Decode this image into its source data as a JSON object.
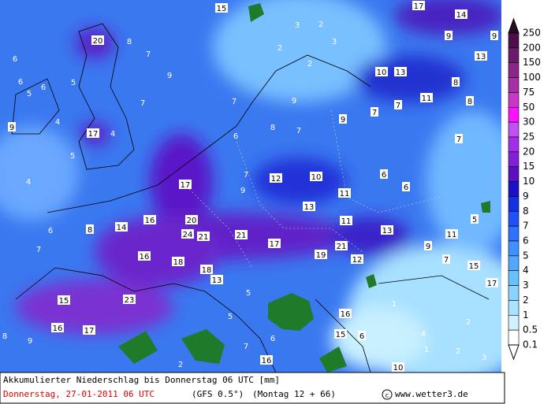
{
  "map": {
    "boxed_labels": [
      15,
      20,
      17,
      10,
      13,
      11,
      17,
      12,
      10,
      13,
      11,
      11,
      13,
      11,
      9,
      16,
      20,
      24,
      21,
      21,
      17,
      21,
      19,
      12,
      16,
      18,
      18,
      13,
      15,
      23,
      16,
      17,
      15,
      17,
      16,
      15,
      16,
      10,
      9,
      8,
      14,
      17,
      14,
      9,
      9,
      13,
      8,
      8,
      9,
      7,
      7,
      6,
      6,
      7,
      5,
      7,
      6
    ],
    "plain_labels": [
      2,
      3,
      3,
      2,
      2,
      9,
      7,
      6,
      6,
      6,
      5,
      5,
      4,
      4,
      5,
      4,
      7,
      8,
      7,
      9,
      6,
      8,
      7,
      7,
      9,
      6,
      7,
      5,
      7,
      5,
      6,
      1,
      4,
      2,
      2,
      2,
      8,
      9,
      3,
      1
    ]
  },
  "legend": {
    "levels": [
      250,
      200,
      150,
      100,
      75,
      50,
      30,
      25,
      20,
      15,
      10,
      9,
      8,
      7,
      6,
      5,
      4,
      3,
      2,
      1,
      0.5,
      0.1
    ],
    "colors": [
      "#2a0a2a",
      "#4b0f4b",
      "#6a1a6a",
      "#8b248b",
      "#a82ea8",
      "#c838c8",
      "#ff10ff",
      "#c050f0",
      "#a030e8",
      "#8020d8",
      "#5a10c0",
      "#1a10c8",
      "#1530e0",
      "#2050f8",
      "#3070ff",
      "#4090ff",
      "#50a8ff",
      "#68c0ff",
      "#88d4ff",
      "#a8e4ff",
      "#d0f2ff",
      "#ffffff",
      "#ffffff"
    ]
  },
  "caption": {
    "title": "Akkumulierter Niederschlag bis Donnerstag 06 UTC [mm]",
    "date": "Donnerstag, 27-01-2011  06 UTC",
    "model": "(GFS 0.5°)",
    "run": "(Montag 12 + 66)",
    "site": "www.wetter3.de"
  }
}
